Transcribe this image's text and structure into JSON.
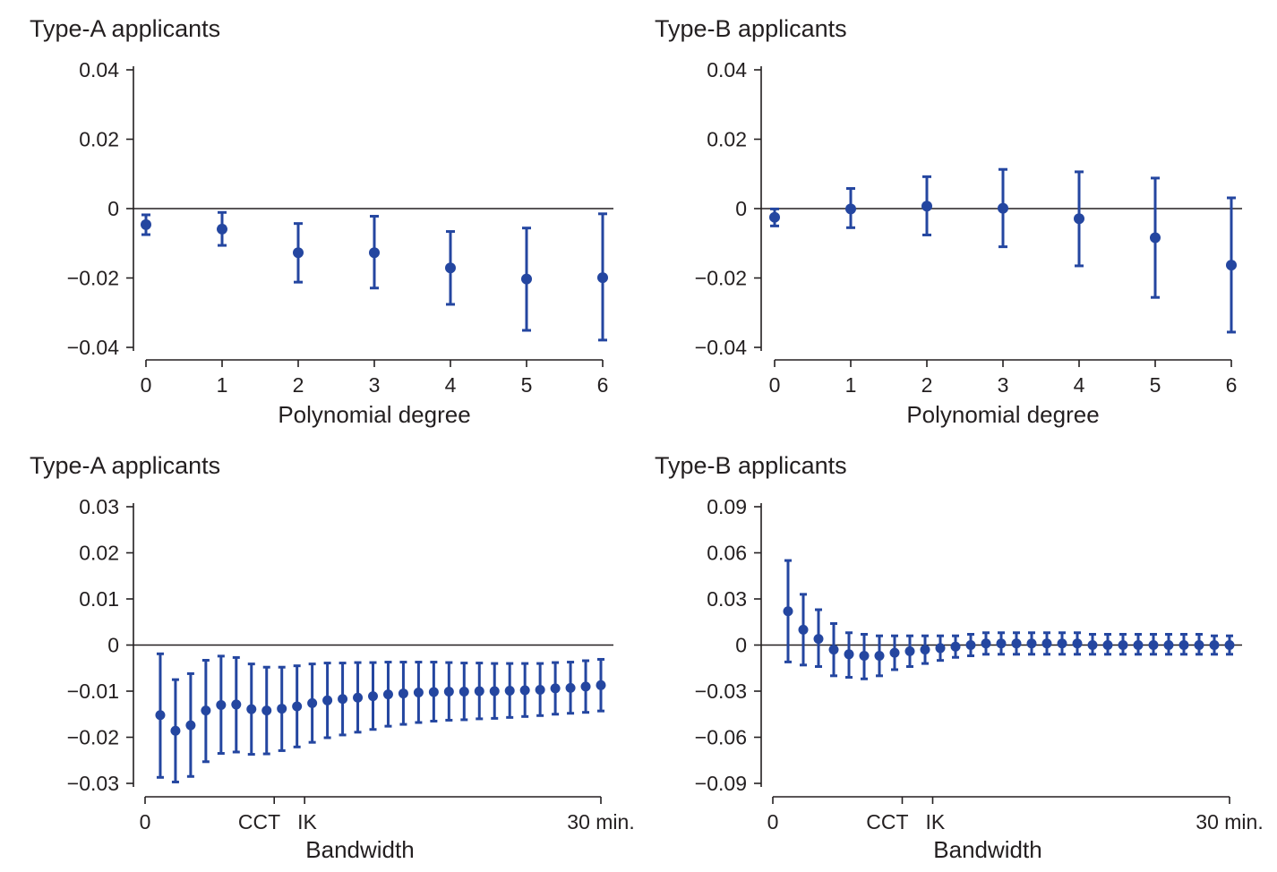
{
  "colors": {
    "marker": "#2446a0",
    "axis": "#231f20"
  },
  "chart_data": [
    {
      "type": "scatter",
      "title": "Type-A applicants",
      "xlabel": "Polynomial degree",
      "ylabel": "",
      "grid": false,
      "ylim": [
        -0.04,
        0.04
      ],
      "yticks": [
        0.04,
        0.02,
        0,
        -0.02,
        -0.04
      ],
      "ytick_labels": [
        "0.04",
        "0.02",
        "0",
        "−0.02",
        "−0.04"
      ],
      "xlim": [
        0,
        6
      ],
      "xticks": [
        0,
        1,
        2,
        3,
        4,
        5,
        6
      ],
      "xtick_labels": [
        "0",
        "1",
        "2",
        "3",
        "4",
        "5",
        "6"
      ],
      "x": [
        0,
        1,
        2,
        3,
        4,
        5,
        6
      ],
      "estimate": [
        -0.0046,
        -0.0059,
        -0.0127,
        -0.0127,
        -0.0171,
        -0.0203,
        -0.0199
      ],
      "ci_low": [
        -0.0075,
        -0.0106,
        -0.0212,
        -0.0229,
        -0.0276,
        -0.0351,
        -0.0379
      ],
      "ci_high": [
        -0.0018,
        -0.0011,
        -0.0043,
        -0.0022,
        -0.0066,
        -0.0056,
        -0.0015
      ]
    },
    {
      "type": "scatter",
      "title": "Type-B applicants",
      "xlabel": "Polynomial degree",
      "ylabel": "",
      "grid": false,
      "ylim": [
        -0.04,
        0.04
      ],
      "yticks": [
        0.04,
        0.02,
        0,
        -0.02,
        -0.04
      ],
      "ytick_labels": [
        "0.04",
        "0.02",
        "0",
        "−0.02",
        "−0.04"
      ],
      "xlim": [
        0,
        6
      ],
      "xticks": [
        0,
        1,
        2,
        3,
        4,
        5,
        6
      ],
      "xtick_labels": [
        "0",
        "1",
        "2",
        "3",
        "4",
        "5",
        "6"
      ],
      "x": [
        0,
        1,
        2,
        3,
        4,
        5,
        6
      ],
      "estimate": [
        -0.0025,
        -0.0001,
        0.0007,
        0.0001,
        -0.0029,
        -0.0084,
        -0.0163
      ],
      "ci_low": [
        -0.005,
        -0.0055,
        -0.0076,
        -0.011,
        -0.0165,
        -0.0256,
        -0.0356
      ],
      "ci_high": [
        -0.0001,
        0.0058,
        0.0092,
        0.0113,
        0.0106,
        0.0088,
        0.0031
      ]
    },
    {
      "type": "scatter",
      "title": "Type-A applicants",
      "xlabel": "Bandwidth",
      "ylabel": "",
      "grid": false,
      "ylim": [
        -0.03,
        0.03
      ],
      "yticks": [
        0.03,
        0.02,
        0.01,
        0,
        -0.01,
        -0.02,
        -0.03
      ],
      "ytick_labels": [
        "0.03",
        "0.02",
        "0.01",
        "0",
        "−0.01",
        "−0.02",
        "−0.03"
      ],
      "xlim": [
        0,
        30
      ],
      "xticks": [
        0,
        8.5,
        10.5,
        30
      ],
      "xtick_labels": [
        "0",
        "CCT",
        "IK",
        "30 min."
      ],
      "x": [
        1,
        2,
        3,
        4,
        5,
        6,
        7,
        8,
        9,
        10,
        11,
        12,
        13,
        14,
        15,
        16,
        17,
        18,
        19,
        20,
        21,
        22,
        23,
        24,
        25,
        26,
        27,
        28,
        29,
        30
      ],
      "estimate": [
        -0.0152,
        -0.0186,
        -0.0174,
        -0.0142,
        -0.013,
        -0.0129,
        -0.0139,
        -0.0142,
        -0.0138,
        -0.0133,
        -0.0126,
        -0.012,
        -0.0117,
        -0.0114,
        -0.0111,
        -0.0107,
        -0.0105,
        -0.0103,
        -0.0102,
        -0.0101,
        -0.0101,
        -0.01,
        -0.01,
        -0.0099,
        -0.0098,
        -0.0097,
        -0.0094,
        -0.0093,
        -0.009,
        -0.0087
      ],
      "ci_low": [
        -0.0287,
        -0.0297,
        -0.0285,
        -0.0253,
        -0.0235,
        -0.0232,
        -0.0237,
        -0.0236,
        -0.0229,
        -0.0221,
        -0.0211,
        -0.0201,
        -0.0195,
        -0.0189,
        -0.0183,
        -0.0176,
        -0.0172,
        -0.0168,
        -0.0165,
        -0.0163,
        -0.0162,
        -0.016,
        -0.0159,
        -0.0157,
        -0.0155,
        -0.0153,
        -0.015,
        -0.0148,
        -0.0146,
        -0.0143
      ],
      "ci_high": [
        -0.0019,
        -0.0075,
        -0.0062,
        -0.0033,
        -0.0024,
        -0.0027,
        -0.0041,
        -0.0048,
        -0.0048,
        -0.0045,
        -0.0041,
        -0.0039,
        -0.0039,
        -0.0038,
        -0.0038,
        -0.0037,
        -0.0037,
        -0.0037,
        -0.0037,
        -0.0038,
        -0.0039,
        -0.0039,
        -0.004,
        -0.004,
        -0.004,
        -0.004,
        -0.0038,
        -0.0037,
        -0.0034,
        -0.0031
      ]
    },
    {
      "type": "scatter",
      "title": "Type-B applicants",
      "xlabel": "Bandwidth",
      "ylabel": "",
      "grid": false,
      "ylim": [
        -0.09,
        0.09
      ],
      "yticks": [
        0.09,
        0.06,
        0.03,
        0,
        -0.03,
        -0.06,
        -0.09
      ],
      "ytick_labels": [
        "0.09",
        "0.06",
        "0.03",
        "0",
        "−0.03",
        "−0.06",
        "−0.09"
      ],
      "xlim": [
        0,
        30
      ],
      "xticks": [
        0,
        8.5,
        10.5,
        30
      ],
      "xtick_labels": [
        "0",
        "CCT",
        "IK",
        "30 min."
      ],
      "x": [
        1,
        2,
        3,
        4,
        5,
        6,
        7,
        8,
        9,
        10,
        11,
        12,
        13,
        14,
        15,
        16,
        17,
        18,
        19,
        20,
        21,
        22,
        23,
        24,
        25,
        26,
        27,
        28,
        29,
        30
      ],
      "estimate": [
        0.022,
        0.01,
        0.004,
        -0.003,
        -0.006,
        -0.007,
        -0.007,
        -0.005,
        -0.004,
        -0.003,
        -0.002,
        -0.001,
        0.0,
        0.001,
        0.001,
        0.001,
        0.001,
        0.001,
        0.001,
        0.001,
        0.0,
        0.0,
        0.0,
        0.0,
        0.0,
        0.0,
        0.0,
        0.0,
        0.0,
        0.0
      ],
      "ci_low": [
        -0.011,
        -0.013,
        -0.014,
        -0.02,
        -0.021,
        -0.022,
        -0.02,
        -0.016,
        -0.014,
        -0.012,
        -0.01,
        -0.008,
        -0.007,
        -0.006,
        -0.006,
        -0.006,
        -0.006,
        -0.006,
        -0.006,
        -0.006,
        -0.006,
        -0.006,
        -0.006,
        -0.006,
        -0.006,
        -0.006,
        -0.006,
        -0.006,
        -0.006,
        -0.006
      ],
      "ci_high": [
        0.055,
        0.033,
        0.023,
        0.014,
        0.008,
        0.007,
        0.006,
        0.006,
        0.006,
        0.006,
        0.006,
        0.006,
        0.007,
        0.008,
        0.008,
        0.008,
        0.008,
        0.008,
        0.008,
        0.008,
        0.007,
        0.007,
        0.007,
        0.007,
        0.007,
        0.007,
        0.007,
        0.007,
        0.006,
        0.006
      ]
    }
  ]
}
